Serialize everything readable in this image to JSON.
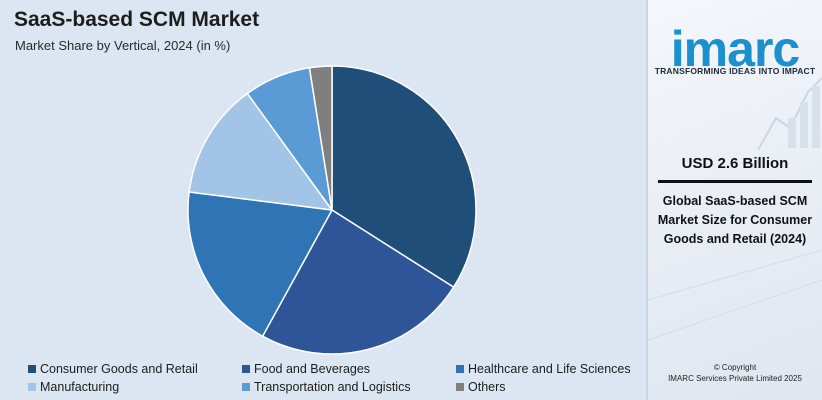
{
  "header": {
    "title": "SaaS-based SCM Market",
    "subtitle": "Market Share by Vertical, 2024 (in %)"
  },
  "chart_data": {
    "type": "pie",
    "title": "SaaS-based SCM Market",
    "subtitle": "Market Share by Vertical, 2024 (in %)",
    "categories": [
      "Consumer Goods and Retail",
      "Food and Beverages",
      "Healthcare and Life Sciences",
      "Manufacturing",
      "Transportation and Logistics",
      "Others"
    ],
    "values": [
      34,
      24,
      19,
      13,
      7.5,
      2.5
    ],
    "colors": [
      "#1f4e79",
      "#2e5597",
      "#2f74b5",
      "#a2c4e6",
      "#5b9bd5",
      "#7f7f7f"
    ],
    "legend_position": "bottom"
  },
  "sidebar": {
    "logo_text": "imarc",
    "tagline": "TRANSFORMING IDEAS INTO IMPACT",
    "value": "USD 2.6 Billion",
    "description": "Global SaaS-based SCM Market Size for Consumer Goods and Retail (2024)",
    "copyright_line1": "© Copyright",
    "copyright_line2": "IMARC Services Private Limited 2025"
  }
}
